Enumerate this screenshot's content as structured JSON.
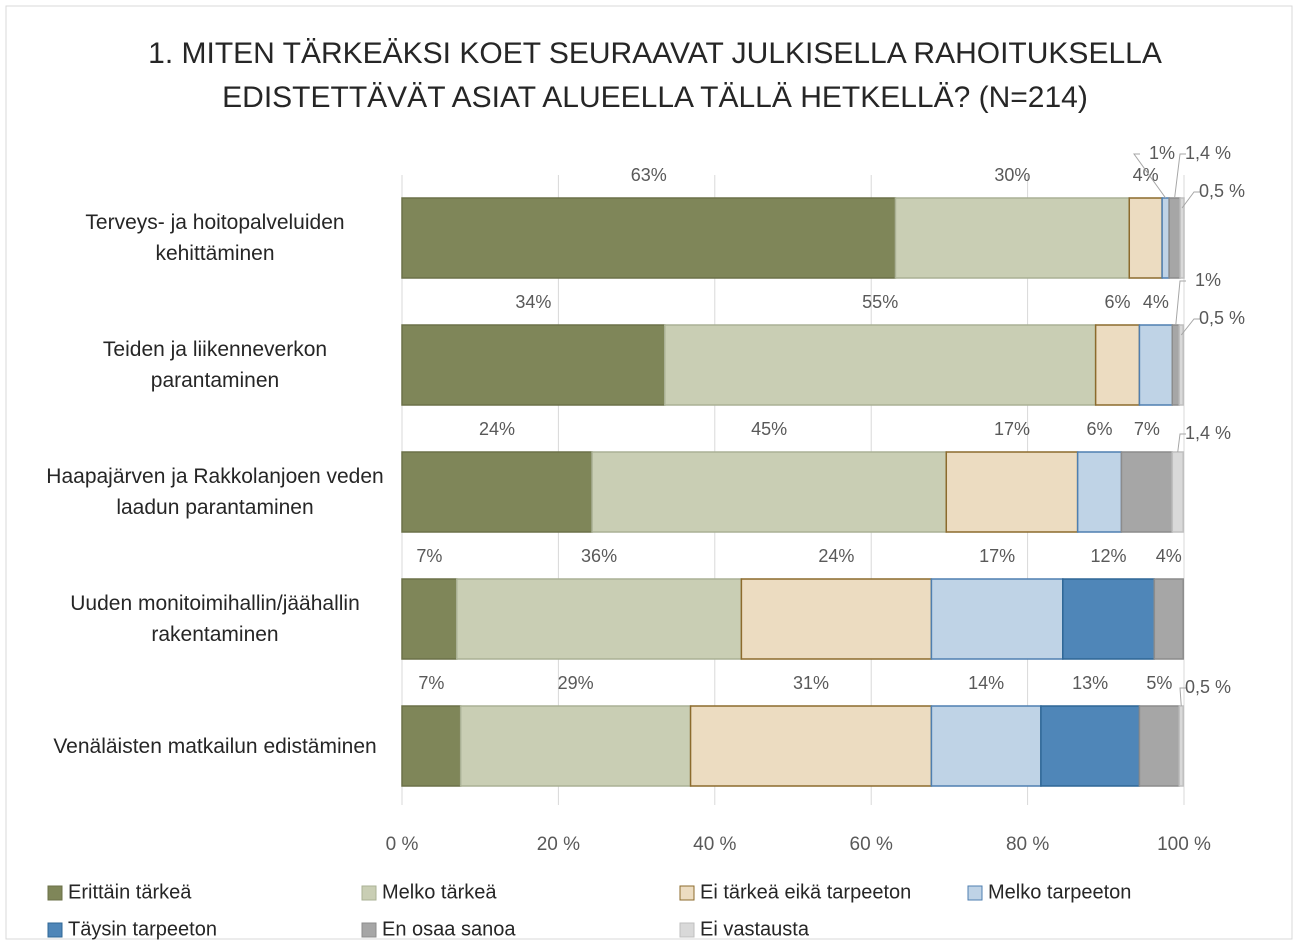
{
  "chart_data": {
    "type": "bar",
    "orientation": "horizontal",
    "stacked": true,
    "title": "1. MITEN TÄRKEÄKSI KOET SEURAAVAT JULKISELLA RAHOITUKSELLA EDISTETTÄVÄT ASIAT ALUEELLA TÄLLÄ HETKELLÄ? (N=214)",
    "categories": [
      "Terveys- ja hoitopalveluiden kehittäminen",
      "Teiden ja liikenneverkon parantaminen",
      "Haapajärven ja Rakkolanjoen veden laadun parantaminen",
      "Uuden monitoimihallin/jäähallin rakentaminen",
      "Venäläisten matkailun edistäminen"
    ],
    "series": [
      {
        "name": "Erittäin tärkeä",
        "color": "#7f8659",
        "values": [
          63.1,
          33.6,
          24.3,
          7.0,
          7.5
        ],
        "value_labels": [
          "63%",
          "34%",
          "24%",
          "7%",
          "7%"
        ]
      },
      {
        "name": "Melko tärkeä",
        "color": "#c9ceb4",
        "values": [
          29.9,
          55.1,
          45.3,
          36.4,
          29.4
        ],
        "value_labels": [
          "30%",
          "55%",
          "45%",
          "36%",
          "29%"
        ]
      },
      {
        "name": "Ei tärkeä eikä tarpeeton",
        "color": "#ecdcc1",
        "values": [
          4.2,
          5.6,
          16.8,
          24.3,
          30.8
        ],
        "value_labels": [
          "4%",
          "6%",
          "17%",
          "24%",
          "31%"
        ]
      },
      {
        "name": "Melko tarpeeton",
        "color": "#bfd3e6",
        "values": [
          0.9,
          4.2,
          5.6,
          16.8,
          14.0
        ],
        "value_labels": [
          "1%",
          "4%",
          "6%",
          "17%",
          "14%"
        ]
      },
      {
        "name": "Täysin tarpeeton",
        "color": "#4f86b8",
        "values": [
          null,
          null,
          null,
          11.7,
          12.6
        ],
        "value_labels": [
          null,
          null,
          null,
          "12%",
          "13%"
        ]
      },
      {
        "name": "En osaa sanoa",
        "color": "#a6a6a6",
        "values": [
          1.4,
          0.9,
          6.5,
          3.7,
          5.1
        ],
        "value_labels": [
          "1,4 %",
          "1%",
          "7%",
          "4%",
          "5%"
        ]
      },
      {
        "name": "Ei vastausta",
        "color": "#d9d9d9",
        "values": [
          0.5,
          0.5,
          1.4,
          null,
          0.5
        ],
        "value_labels": [
          "0,5 %",
          "0,5 %",
          "1,4 %",
          null,
          "0,5 %"
        ]
      }
    ],
    "xlim": [
      0,
      100
    ],
    "xticks": [
      {
        "value": 0,
        "label": "0 %"
      },
      {
        "value": 20,
        "label": "20 %"
      },
      {
        "value": 40,
        "label": "40 %"
      },
      {
        "value": 60,
        "label": "60 %"
      },
      {
        "value": 80,
        "label": "80 %"
      },
      {
        "value": 100,
        "label": "100 %"
      }
    ],
    "grid": true,
    "legend": "bottom"
  }
}
